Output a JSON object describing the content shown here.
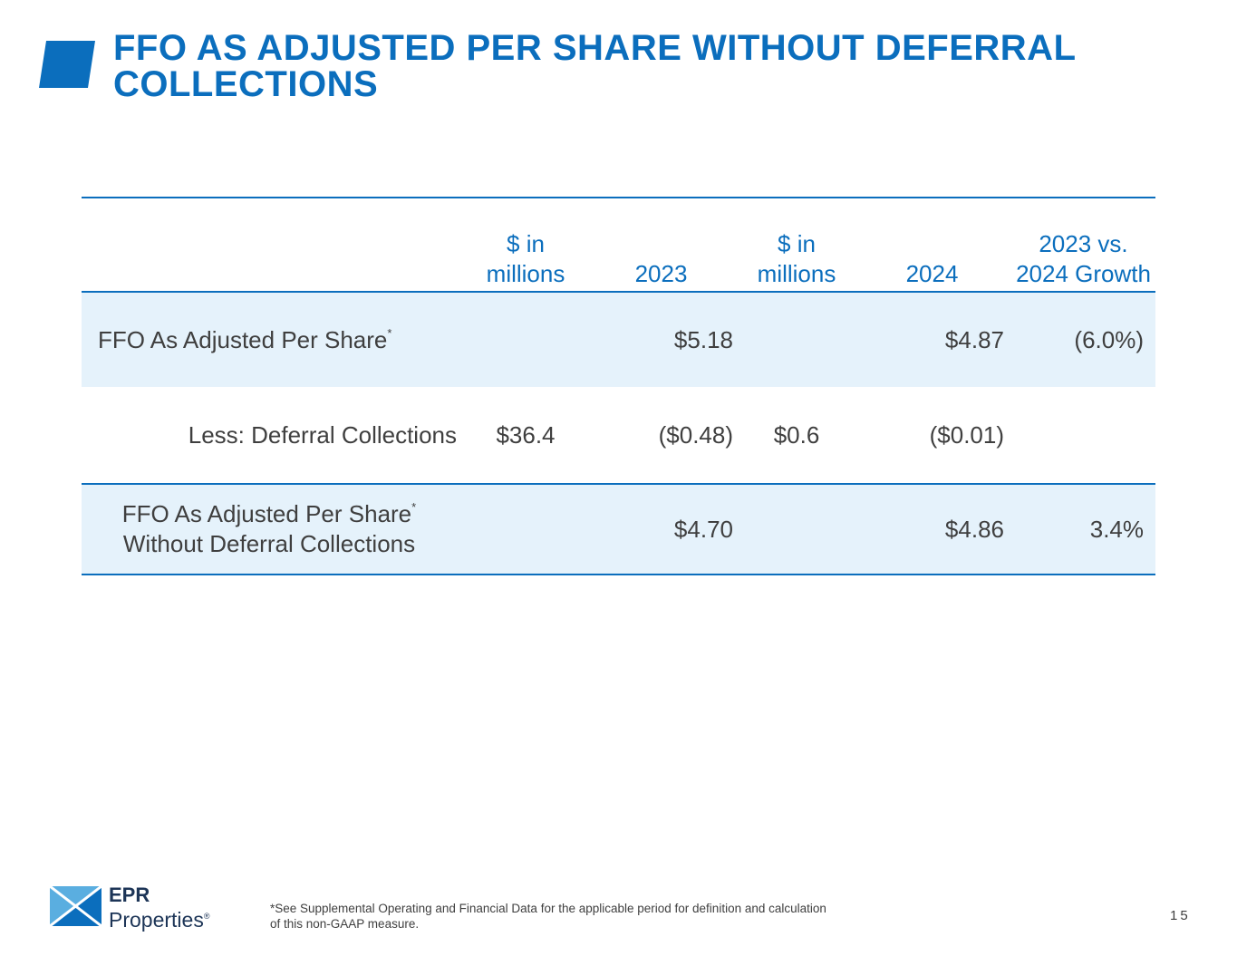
{
  "slide": {
    "title_line1": "FFO AS ADJUSTED PER SHARE WITHOUT DEFERRAL",
    "title_line2": "COLLECTIONS"
  },
  "table": {
    "headers": {
      "millions_2023": "$ in millions",
      "year_2023": "2023",
      "millions_2024": "$ in millions",
      "year_2024": "2024",
      "growth": "2023 vs. 2024 Growth"
    },
    "rows": [
      {
        "label": "FFO As Adjusted Per Share",
        "footnote_marker": "*",
        "millions_2023": "",
        "value_2023": "$5.18",
        "millions_2024": "",
        "value_2024": "$4.87",
        "growth": "(6.0%)"
      },
      {
        "label": "Less: Deferral Collections",
        "millions_2023": "$36.4",
        "value_2023": "($0.48)",
        "millions_2024": "$0.6",
        "value_2024": "($0.01)",
        "growth": ""
      },
      {
        "label_line1": "FFO As Adjusted Per Share",
        "footnote_marker": "*",
        "label_line2": "Without Deferral Collections",
        "millions_2023": "",
        "value_2023": "$4.70",
        "millions_2024": "",
        "value_2024": "$4.86",
        "growth": "3.4%"
      }
    ]
  },
  "footer": {
    "logo_line1": "EPR",
    "logo_line2": "Properties",
    "logo_registered": "®",
    "footnote_line1": "*See Supplemental Operating and Financial Data for the applicable period for definition and calculation",
    "footnote_line2": "of this non-GAAP measure.",
    "page_number": "15"
  },
  "colors": {
    "brand_blue": "#0b6ebd",
    "row_highlight": "#e5f2fb",
    "text": "#3f3f3f"
  }
}
